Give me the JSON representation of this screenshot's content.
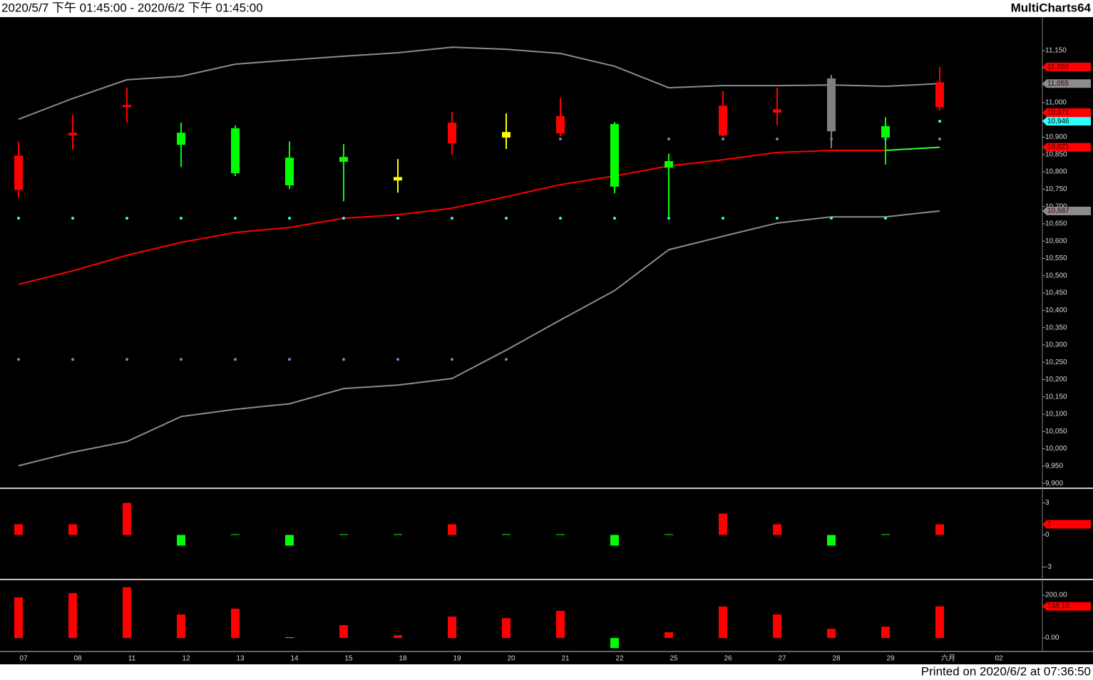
{
  "header": {
    "range": "2020/5/7 下午 01:45:00 - 2020/6/2 下午 01:45:00",
    "app": "MultiCharts64"
  },
  "footer": "Printed on 2020/6/2 at 07:36:50",
  "chart_data": [
    {
      "type": "candlestick",
      "categories": [
        "07",
        "08",
        "11",
        "12",
        "13",
        "14",
        "15",
        "18",
        "19",
        "20",
        "21",
        "22",
        "25",
        "26",
        "27",
        "28",
        "29",
        "六月",
        "02"
      ],
      "open": [
        10847,
        10913,
        10993,
        10878,
        10796,
        10761,
        10829,
        10775,
        10942,
        10899,
        10961,
        10757,
        10812,
        10991,
        10981,
        11070,
        10899,
        11059,
        null
      ],
      "high": [
        10888,
        10965,
        11043,
        10942,
        10934,
        10888,
        10880,
        10837,
        10973,
        10969,
        11014,
        10944,
        10853,
        11033,
        11043,
        11080,
        10958,
        11103,
        null
      ],
      "low": [
        10726,
        10864,
        10942,
        10814,
        10788,
        10750,
        10715,
        10740,
        10849,
        10866,
        10903,
        10738,
        10666,
        10903,
        10934,
        10868,
        10821,
        10977,
        null
      ],
      "close": [
        10748,
        10905,
        10987,
        10913,
        10926,
        10841,
        10843,
        10785,
        10882,
        10915,
        10911,
        10938,
        10831,
        10905,
        10971,
        10917,
        10932,
        10987,
        null
      ],
      "colors": [
        "#ff0000",
        "#ff0000",
        "#ff0000",
        "#00ff00",
        "#00ff00",
        "#00ff00",
        "#00ff00",
        "#ffff00",
        "#ff0000",
        "#ffff00",
        "#ff0000",
        "#00ff00",
        "#00ff00",
        "#ff0000",
        "#ff0000",
        "#808080",
        "#00ff00",
        "#ff0000",
        null
      ],
      "series": [
        {
          "style": "line",
          "color": "#8c8c8c",
          "values": [
            10952,
            11012,
            11066,
            11076,
            11111,
            11123,
            11134,
            11144,
            11160,
            11154,
            11142,
            11105,
            11043,
            11049,
            11049,
            11051,
            11047,
            11055,
            null
          ]
        },
        {
          "style": "line",
          "color": "#8c8c8c",
          "values": [
            9951,
            9990,
            10021,
            10093,
            10114,
            10130,
            10174,
            10184,
            10203,
            10285,
            10372,
            10457,
            10575,
            10614,
            10652,
            10670,
            10670,
            10687,
            null
          ]
        },
        {
          "style": "line",
          "color": "#ff0000",
          "last_color": "#33ff33",
          "values": [
            10475,
            10514,
            10559,
            10596,
            10625,
            10639,
            10666,
            10676,
            10695,
            10728,
            10763,
            10788,
            10817,
            10835,
            10856,
            10862,
            10862,
            10871,
            null
          ]
        },
        {
          "style": "dots",
          "color": "#33ffff",
          "values": [
            10666,
            10666,
            10666,
            10666,
            10666,
            10666,
            10666,
            10666,
            10666,
            10666,
            10666,
            10666,
            10666,
            10666,
            10666,
            10666,
            10666,
            10946,
            null
          ]
        },
        {
          "style": "dots",
          "color": "#8080c8",
          "values": [
            10258,
            10258,
            10258,
            10258,
            10258,
            10258,
            10258,
            10258,
            10258,
            10258,
            10895,
            10895,
            10895,
            10895,
            10895,
            10895,
            10895,
            10895,
            null
          ]
        }
      ],
      "price_labels": [
        {
          "value": 11103,
          "label": "11,103",
          "color": "#ff0000"
        },
        {
          "value": 11055,
          "label": "11,055",
          "color": "#8c8c8c"
        },
        {
          "value": 10971,
          "label": "10,971",
          "color": "#ff0000"
        },
        {
          "value": 10946,
          "label": "10,946",
          "color": "#33ffff"
        },
        {
          "value": 10871,
          "label": "10,871",
          "color": "#ff0000"
        },
        {
          "value": 10687,
          "label": "10,687",
          "color": "#8c8c8c"
        }
      ],
      "ylim": [
        9888,
        11247
      ],
      "yticks": [
        {
          "value": 11150,
          "label": "11,150"
        },
        {
          "value": 11100,
          "label": "11,100"
        },
        {
          "value": 11050,
          "label": "11,050"
        },
        {
          "value": 11000,
          "label": "11,000"
        },
        {
          "value": 10950,
          "label": "10,950"
        },
        {
          "value": 10900,
          "label": "10,900"
        },
        {
          "value": 10850,
          "label": "10,850"
        },
        {
          "value": 10800,
          "label": "10,800"
        },
        {
          "value": 10750,
          "label": "10,750"
        },
        {
          "value": 10700,
          "label": "10,700"
        },
        {
          "value": 10650,
          "label": "10,650"
        },
        {
          "value": 10600,
          "label": "10,600"
        },
        {
          "value": 10550,
          "label": "10,550"
        },
        {
          "value": 10500,
          "label": "10,500"
        },
        {
          "value": 10450,
          "label": "10,450"
        },
        {
          "value": 10400,
          "label": "10,400"
        },
        {
          "value": 10350,
          "label": "10,350"
        },
        {
          "value": 10300,
          "label": "10,300"
        },
        {
          "value": 10250,
          "label": "10,250"
        },
        {
          "value": 10200,
          "label": "10,200"
        },
        {
          "value": 10150,
          "label": "10,150"
        },
        {
          "value": 10100,
          "label": "10,100"
        },
        {
          "value": 10050,
          "label": "10,050"
        },
        {
          "value": 10000,
          "label": "10,000"
        },
        {
          "value": 9950,
          "label": "9,950"
        },
        {
          "value": 9900,
          "label": "9,900"
        }
      ]
    },
    {
      "type": "bar",
      "up_color": "#ff0000",
      "down_color": "#00ff00",
      "values": [
        1,
        1,
        3,
        -1,
        0,
        -1,
        0,
        0,
        1,
        0,
        0,
        -1,
        0,
        2,
        1,
        -1,
        0,
        1,
        null
      ],
      "price_labels": [
        {
          "value": 1,
          "label": "1",
          "color": "#ff0000"
        }
      ],
      "ylim": [
        -4.1,
        4.3
      ],
      "yticks": [
        3,
        0,
        -3
      ]
    },
    {
      "type": "bar",
      "up_color": "#ff0000",
      "down_color": "#00ff00",
      "values": [
        190,
        210,
        237,
        110,
        137,
        0,
        60,
        13,
        100,
        93,
        127,
        -47,
        27,
        147,
        110,
        43,
        53,
        148.1,
        null
      ],
      "price_labels": [
        {
          "value": 148.1,
          "label": "148.10",
          "color": "#ff0000"
        }
      ],
      "ylim": [
        -63,
        270
      ],
      "yticks": [
        {
          "value": 200,
          "label": "200.00"
        },
        {
          "value": 0,
          "label": "0.00"
        }
      ]
    }
  ]
}
